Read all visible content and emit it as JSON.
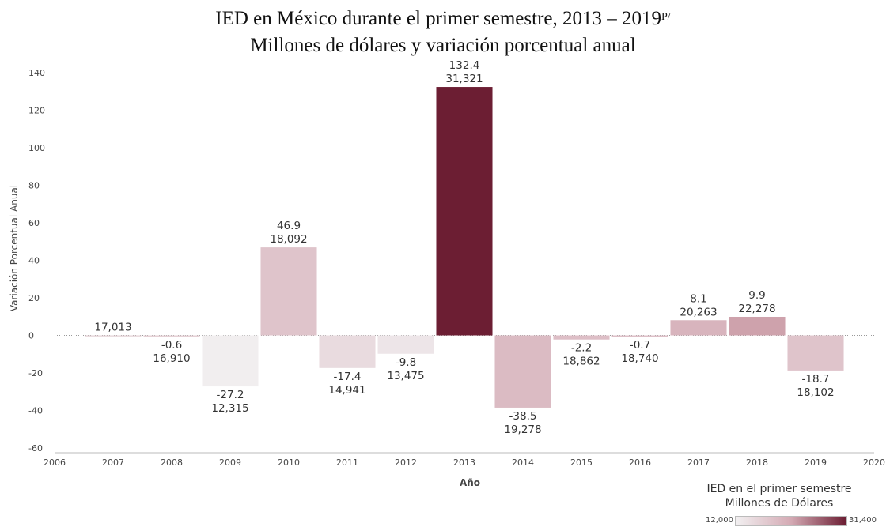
{
  "title": {
    "line1": "IED en México durante el primer semestre, 2013 – 2019",
    "line1_sup": "P/",
    "line2": "Millones de dólares y variación porcentual anual"
  },
  "chart_data": {
    "type": "bar",
    "categories": [
      "2007",
      "2008",
      "2009",
      "2010",
      "2011",
      "2012",
      "2013",
      "2014",
      "2015",
      "2016",
      "2017",
      "2018",
      "2019"
    ],
    "series": [
      {
        "values": [
          0,
          -0.6,
          -27.2,
          46.9,
          -17.4,
          -9.8,
          132.4,
          -38.5,
          -2.2,
          -0.7,
          8.1,
          9.9,
          -18.7
        ]
      }
    ],
    "ied_millones_usd": [
      17013,
      16910,
      12315,
      18092,
      14941,
      13475,
      31321,
      19278,
      18862,
      18740,
      20263,
      22278,
      18102
    ],
    "variation_labels": [
      "",
      "-0.6",
      "-27.2",
      "46.9",
      "-17.4",
      "-9.8",
      "132.4",
      "-38.5",
      "-2.2",
      "-0.7",
      "8.1",
      "9.9",
      "-18.7"
    ],
    "ied_labels": [
      "17,013",
      "16,910",
      "12,315",
      "18,092",
      "14,941",
      "13,475",
      "31,321",
      "19,278",
      "18,862",
      "18,740",
      "20,263",
      "22,278",
      "18,102"
    ],
    "xticks": [
      "2006",
      "2007",
      "2008",
      "2009",
      "2010",
      "2011",
      "2012",
      "2013",
      "2014",
      "2015",
      "2016",
      "2017",
      "2018",
      "2019",
      "2020"
    ],
    "xlim": [
      2006,
      2020
    ],
    "yticks": [
      -60,
      -40,
      -20,
      0,
      20,
      40,
      60,
      80,
      100,
      120,
      140
    ],
    "ylim": [
      -60,
      140
    ],
    "xlabel": "Año",
    "ylabel": "Variación Porcentual Anual",
    "legend": {
      "title_line1": "IED en el primer semestre",
      "title_line2": "Millones de Dólares",
      "min_label": "12,000",
      "max_label": "31,400",
      "min_value": 12000,
      "max_value": 31400,
      "colors": [
        "#f2f0f1",
        "#d4aab4",
        "#6b1d32"
      ],
      "placement": "bottom-right"
    },
    "grid": false,
    "zero_line": "dotted"
  }
}
